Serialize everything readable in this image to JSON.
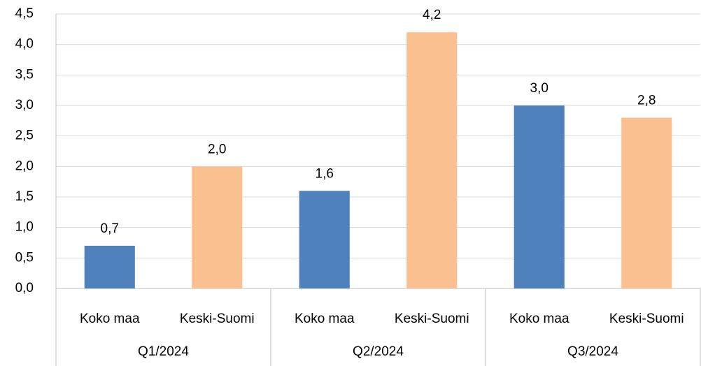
{
  "chart_data": {
    "type": "bar",
    "categories": [
      "Koko maa",
      "Keski-Suomi",
      "Koko maa",
      "Keski-Suomi",
      "Koko maa",
      "Keski-Suomi"
    ],
    "groups": [
      "Q1/2024",
      "Q2/2024",
      "Q3/2024"
    ],
    "values": [
      0.7,
      2.0,
      1.6,
      4.2,
      3.0,
      2.8
    ],
    "value_labels": [
      "0,7",
      "2,0",
      "1,6",
      "4,2",
      "3,0",
      "2,8"
    ],
    "colors": [
      "#4f81bd",
      "#fac090",
      "#4f81bd",
      "#fac090",
      "#4f81bd",
      "#fac090"
    ],
    "ylim": [
      0,
      4.5
    ],
    "yticks": [
      {
        "value": 0,
        "label": "0,0"
      },
      {
        "value": 0.5,
        "label": "0,5"
      },
      {
        "value": 1,
        "label": "1,0"
      },
      {
        "value": 1.5,
        "label": "1,5"
      },
      {
        "value": 2,
        "label": "2,0"
      },
      {
        "value": 2.5,
        "label": "2,5"
      },
      {
        "value": 3,
        "label": "3,0"
      },
      {
        "value": 3.5,
        "label": "3,5"
      },
      {
        "value": 4,
        "label": "4,0"
      },
      {
        "value": 4.5,
        "label": "4,5"
      }
    ],
    "grid": true
  }
}
